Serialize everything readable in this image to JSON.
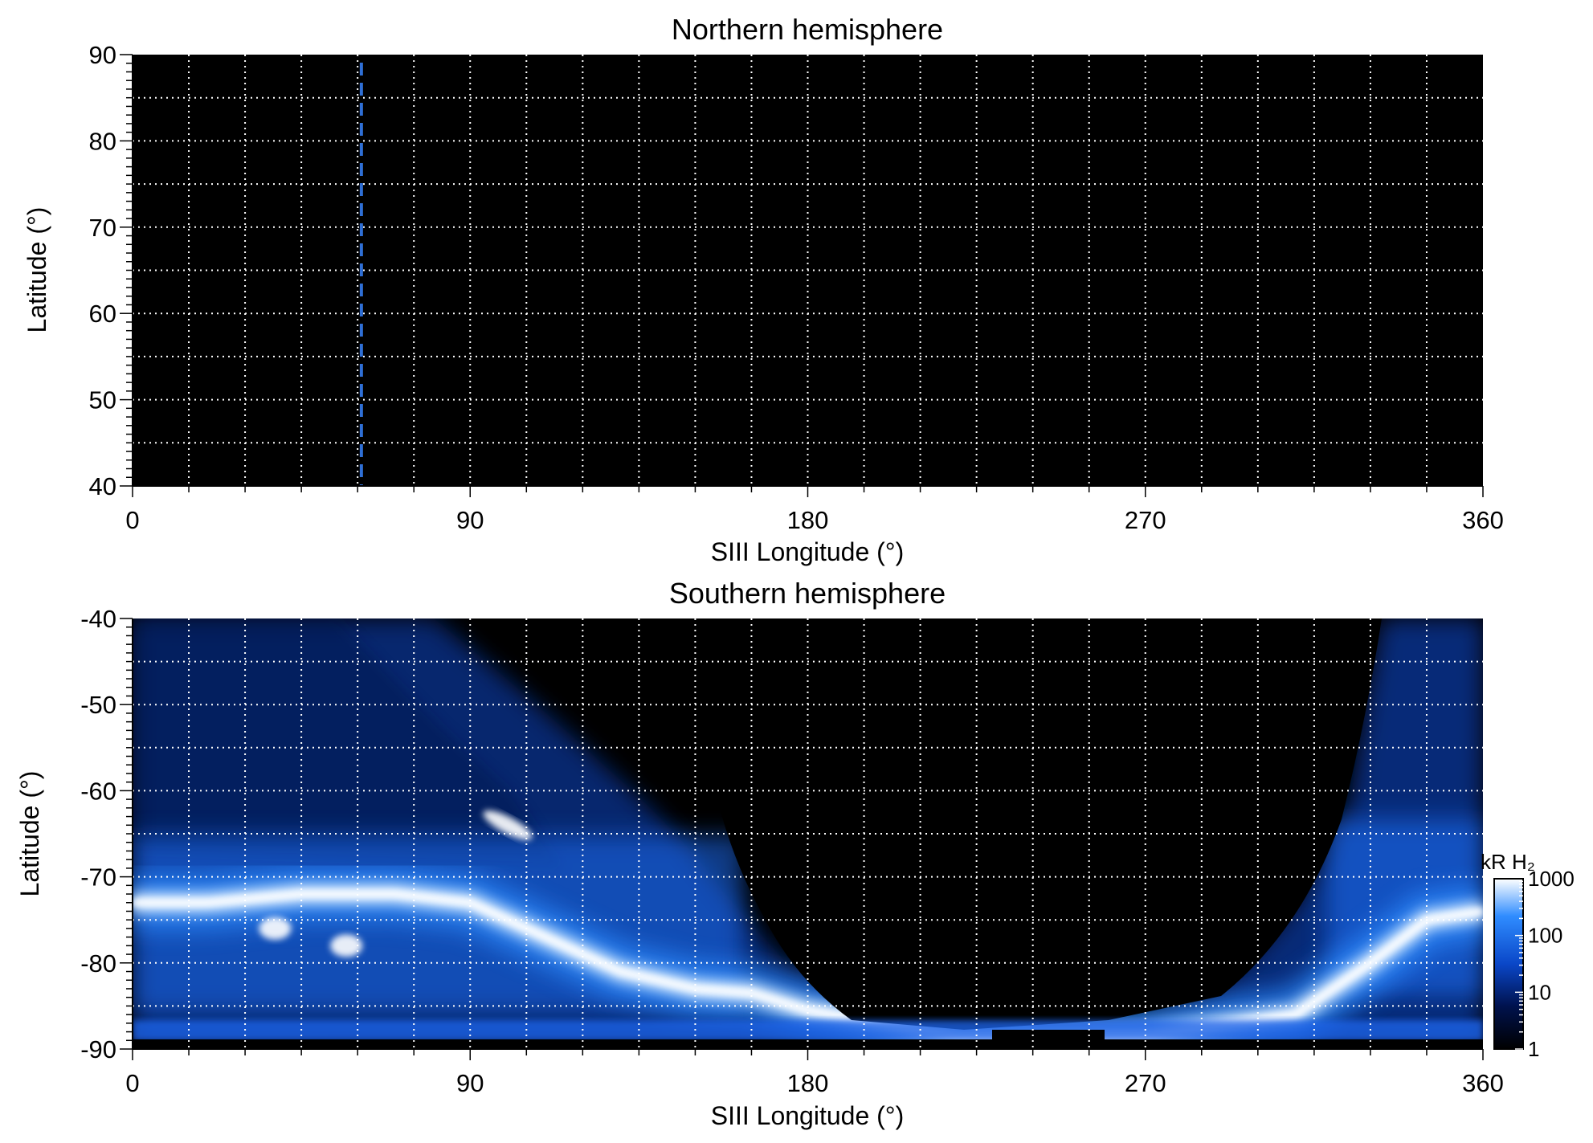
{
  "chart_data": [
    {
      "type": "heatmap",
      "title": "Northern hemisphere",
      "xlabel": "SIII Longitude (°)",
      "ylabel": "Latitude (°)",
      "xlim": [
        0,
        360
      ],
      "ylim": [
        40,
        90
      ],
      "x_ticks": [
        0,
        90,
        180,
        270,
        360
      ],
      "y_ticks": [
        40,
        50,
        60,
        70,
        80,
        90
      ],
      "grid": true,
      "background": "#000000",
      "emission": "none",
      "reference_line": {
        "style": "dashed",
        "longitude": 61,
        "color": "#2f6fd6"
      }
    },
    {
      "type": "heatmap",
      "title": "Southern hemisphere",
      "xlabel": "SIII Longitude (°)",
      "ylabel": "Latitude (°)",
      "xlim": [
        0,
        360
      ],
      "ylim": [
        -90,
        -40
      ],
      "x_ticks": [
        0,
        90,
        180,
        270,
        360
      ],
      "y_ticks": [
        -40,
        -50,
        -60,
        -70,
        -80,
        -90
      ],
      "grid": true,
      "background": "#000000",
      "main_oval": [
        {
          "lon": 0,
          "lat": -73
        },
        {
          "lon": 20,
          "lat": -73
        },
        {
          "lon": 45,
          "lat": -72
        },
        {
          "lon": 70,
          "lat": -72
        },
        {
          "lon": 90,
          "lat": -73
        },
        {
          "lon": 110,
          "lat": -77
        },
        {
          "lon": 130,
          "lat": -81
        },
        {
          "lon": 150,
          "lat": -83
        },
        {
          "lon": 165,
          "lat": -83.5
        },
        {
          "lon": 180,
          "lat": -85.5
        },
        {
          "lon": 220,
          "lat": -88.5
        },
        {
          "lon": 270,
          "lat": -88.5
        },
        {
          "lon": 310,
          "lat": -86
        },
        {
          "lon": 330,
          "lat": -80
        },
        {
          "lon": 345,
          "lat": -75
        },
        {
          "lon": 360,
          "lat": -74
        }
      ],
      "bright_spots": [
        {
          "lon": 100,
          "lat": -64,
          "value": 1000
        },
        {
          "lon": 57,
          "lat": -78,
          "value": 600
        },
        {
          "lon": 38,
          "lat": -76,
          "value": 500
        }
      ],
      "colorbar": {
        "label": "kR H₂",
        "scale": "log",
        "range": [
          1,
          1000
        ],
        "ticks": [
          "1",
          "10",
          "100",
          "1000"
        ],
        "colors": [
          "#000000",
          "#00124d",
          "#0a47c8",
          "#2f8cff",
          "#ffffff"
        ]
      }
    }
  ]
}
